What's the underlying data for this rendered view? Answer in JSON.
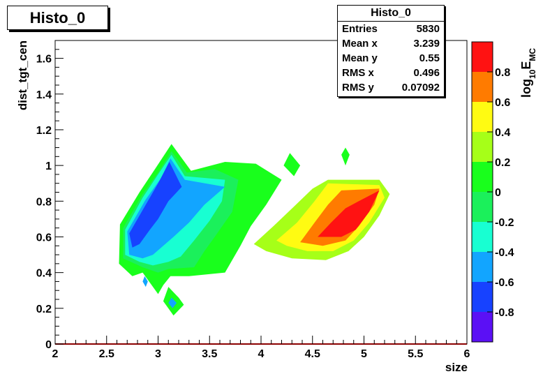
{
  "title": "Histo_0",
  "stats": {
    "title": "Histo_0",
    "rows": [
      {
        "label": "Entries",
        "value": "5830"
      },
      {
        "label": "Mean x",
        "value": "3.239"
      },
      {
        "label": "Mean y",
        "value": "0.55"
      },
      {
        "label": "RMS x",
        "value": "0.496"
      },
      {
        "label": "RMS y",
        "value": "0.07092"
      }
    ]
  },
  "chart_data": {
    "type": "heatmap",
    "style": "filled-contour",
    "xlabel": "size",
    "ylabel": "dist_tgt_cen",
    "zlabel_main": "log",
    "zlabel_sub1": "10",
    "zlabel_mid": "E",
    "zlabel_sub2": "MC",
    "xlim": [
      2,
      6
    ],
    "ylim": [
      0,
      1.7
    ],
    "x_ticks": [
      {
        "v": 2,
        "label": "2"
      },
      {
        "v": 2.5,
        "label": "2.5"
      },
      {
        "v": 3,
        "label": "3"
      },
      {
        "v": 3.5,
        "label": "3.5"
      },
      {
        "v": 4,
        "label": "4"
      },
      {
        "v": 4.5,
        "label": "4.5"
      },
      {
        "v": 5,
        "label": "5"
      },
      {
        "v": 5.5,
        "label": "5.5"
      },
      {
        "v": 6,
        "label": "6"
      }
    ],
    "y_ticks": [
      {
        "v": 0,
        "label": "0"
      },
      {
        "v": 0.2,
        "label": "0.2"
      },
      {
        "v": 0.4,
        "label": "0.4"
      },
      {
        "v": 0.6,
        "label": "0.6"
      },
      {
        "v": 0.8,
        "label": "0.8"
      },
      {
        "v": 1,
        "label": "1"
      },
      {
        "v": 1.2,
        "label": "1.2"
      },
      {
        "v": 1.4,
        "label": "1.4"
      },
      {
        "v": 1.6,
        "label": "1.6"
      }
    ],
    "zlim": [
      -1,
      1
    ],
    "z_levels": [
      {
        "lo": -1.0,
        "hi": -0.8,
        "color": "#5b10f5"
      },
      {
        "lo": -0.8,
        "hi": -0.6,
        "color": "#1742ff"
      },
      {
        "lo": -0.6,
        "hi": -0.4,
        "color": "#12a5ff"
      },
      {
        "lo": -0.4,
        "hi": -0.2,
        "color": "#18ffd2"
      },
      {
        "lo": -0.2,
        "hi": 0.0,
        "color": "#1bf05b"
      },
      {
        "lo": 0.0,
        "hi": 0.2,
        "color": "#19ff1c"
      },
      {
        "lo": 0.2,
        "hi": 0.4,
        "color": "#a6ff18"
      },
      {
        "lo": 0.4,
        "hi": 0.6,
        "color": "#fffb12"
      },
      {
        "lo": 0.6,
        "hi": 0.8,
        "color": "#ff7b00"
      },
      {
        "lo": 0.8,
        "hi": 1.0,
        "color": "#ff1212"
      }
    ],
    "z_ticks": [
      {
        "v": 0.8,
        "label": "0.8"
      },
      {
        "v": 0.6,
        "label": "0.6"
      },
      {
        "v": 0.4,
        "label": "0.4"
      },
      {
        "v": 0.2,
        "label": "0.2"
      },
      {
        "v": 0,
        "label": "0"
      },
      {
        "v": -0.2,
        "label": "-0.2"
      },
      {
        "v": -0.4,
        "label": "-0.4"
      },
      {
        "v": -0.6,
        "label": "-0.6"
      },
      {
        "v": -0.8,
        "label": "-0.8"
      }
    ],
    "regions": [
      {
        "level": 0.1,
        "color": "#19ff1c",
        "points": [
          [
            2.63,
            0.67
          ],
          [
            2.82,
            0.85
          ],
          [
            2.97,
            0.98
          ],
          [
            3.13,
            1.12
          ],
          [
            3.32,
            0.97
          ],
          [
            3.65,
            1.02
          ],
          [
            3.95,
            1.01
          ],
          [
            4.2,
            0.92
          ],
          [
            4.05,
            0.78
          ],
          [
            3.9,
            0.66
          ],
          [
            3.8,
            0.55
          ],
          [
            3.65,
            0.4
          ],
          [
            3.3,
            0.38
          ],
          [
            3.12,
            0.38
          ],
          [
            3.05,
            0.33
          ],
          [
            3.0,
            0.28
          ],
          [
            2.85,
            0.4
          ],
          [
            2.75,
            0.38
          ],
          [
            2.62,
            0.45
          ]
        ]
      },
      {
        "level": 0.1,
        "color": "#19ff1c",
        "points": [
          [
            3.1,
            0.32
          ],
          [
            3.2,
            0.26
          ],
          [
            3.25,
            0.22
          ],
          [
            3.15,
            0.16
          ],
          [
            3.05,
            0.24
          ]
        ]
      },
      {
        "level": 0.1,
        "color": "#19ff1c",
        "points": [
          [
            4.28,
            1.07
          ],
          [
            4.38,
            1.0
          ],
          [
            4.32,
            0.94
          ],
          [
            4.22,
            1.0
          ]
        ]
      },
      {
        "level": 0.1,
        "color": "#19ff1c",
        "points": [
          [
            4.82,
            1.1
          ],
          [
            4.86,
            1.06
          ],
          [
            4.82,
            1.0
          ],
          [
            4.78,
            1.06
          ]
        ]
      },
      {
        "level": -0.1,
        "color": "#1bf05b",
        "points": [
          [
            2.66,
            0.65
          ],
          [
            2.85,
            0.84
          ],
          [
            3.0,
            0.96
          ],
          [
            3.13,
            1.08
          ],
          [
            3.28,
            0.96
          ],
          [
            3.55,
            0.98
          ],
          [
            3.78,
            0.92
          ],
          [
            3.72,
            0.74
          ],
          [
            3.55,
            0.6
          ],
          [
            3.45,
            0.52
          ],
          [
            3.35,
            0.43
          ],
          [
            3.1,
            0.42
          ],
          [
            3.0,
            0.4
          ],
          [
            2.85,
            0.43
          ],
          [
            2.66,
            0.48
          ]
        ]
      },
      {
        "level": -0.3,
        "color": "#18ffd2",
        "points": [
          [
            2.68,
            0.64
          ],
          [
            2.85,
            0.82
          ],
          [
            3.0,
            0.95
          ],
          [
            3.13,
            1.06
          ],
          [
            3.26,
            0.94
          ],
          [
            3.65,
            0.92
          ],
          [
            3.62,
            0.8
          ],
          [
            3.5,
            0.69
          ],
          [
            3.35,
            0.58
          ],
          [
            3.22,
            0.49
          ],
          [
            3.1,
            0.46
          ],
          [
            2.95,
            0.44
          ],
          [
            2.82,
            0.46
          ],
          [
            2.68,
            0.5
          ]
        ]
      },
      {
        "level": -0.5,
        "color": "#12a5ff",
        "points": [
          [
            2.7,
            0.63
          ],
          [
            2.88,
            0.81
          ],
          [
            3.03,
            0.93
          ],
          [
            3.12,
            1.04
          ],
          [
            3.26,
            0.92
          ],
          [
            3.65,
            0.88
          ],
          [
            3.45,
            0.78
          ],
          [
            3.3,
            0.68
          ],
          [
            3.15,
            0.6
          ],
          [
            3.05,
            0.55
          ],
          [
            2.95,
            0.5
          ],
          [
            2.85,
            0.48
          ],
          [
            2.72,
            0.5
          ]
        ]
      },
      {
        "level": -0.5,
        "color": "#12a5ff",
        "points": [
          [
            2.87,
            0.38
          ],
          [
            2.9,
            0.35
          ],
          [
            2.88,
            0.32
          ],
          [
            2.85,
            0.35
          ]
        ]
      },
      {
        "level": -0.5,
        "color": "#12a5ff",
        "points": [
          [
            3.13,
            0.26
          ],
          [
            3.18,
            0.23
          ],
          [
            3.14,
            0.2
          ],
          [
            3.1,
            0.23
          ]
        ]
      },
      {
        "level": -0.7,
        "color": "#1742ff",
        "points": [
          [
            2.72,
            0.62
          ],
          [
            2.88,
            0.78
          ],
          [
            3.0,
            0.9
          ],
          [
            3.11,
            1.02
          ],
          [
            3.23,
            0.88
          ],
          [
            3.1,
            0.8
          ],
          [
            3.0,
            0.7
          ],
          [
            2.92,
            0.64
          ],
          [
            2.82,
            0.56
          ],
          [
            2.75,
            0.54
          ]
        ]
      },
      {
        "level": 0.3,
        "color": "#a6ff18",
        "points": [
          [
            3.93,
            0.56
          ],
          [
            4.12,
            0.66
          ],
          [
            4.32,
            0.77
          ],
          [
            4.5,
            0.87
          ],
          [
            4.65,
            0.92
          ],
          [
            5.15,
            0.92
          ],
          [
            5.25,
            0.84
          ],
          [
            5.15,
            0.72
          ],
          [
            5.0,
            0.6
          ],
          [
            4.85,
            0.52
          ],
          [
            4.63,
            0.47
          ],
          [
            4.3,
            0.48
          ],
          [
            4.05,
            0.52
          ]
        ]
      },
      {
        "level": 0.5,
        "color": "#fffb12",
        "points": [
          [
            4.15,
            0.58
          ],
          [
            4.35,
            0.68
          ],
          [
            4.52,
            0.8
          ],
          [
            4.65,
            0.9
          ],
          [
            5.15,
            0.89
          ],
          [
            5.2,
            0.82
          ],
          [
            5.05,
            0.68
          ],
          [
            4.9,
            0.58
          ],
          [
            4.7,
            0.52
          ],
          [
            4.45,
            0.52
          ],
          [
            4.25,
            0.55
          ]
        ]
      },
      {
        "level": 0.7,
        "color": "#ff7b00",
        "points": [
          [
            4.38,
            0.57
          ],
          [
            4.52,
            0.68
          ],
          [
            4.65,
            0.78
          ],
          [
            4.78,
            0.86
          ],
          [
            5.15,
            0.87
          ],
          [
            5.1,
            0.78
          ],
          [
            4.95,
            0.66
          ],
          [
            4.82,
            0.58
          ],
          [
            4.6,
            0.55
          ]
        ]
      },
      {
        "level": 0.9,
        "color": "#ff1212",
        "points": [
          [
            4.55,
            0.6
          ],
          [
            4.68,
            0.68
          ],
          [
            4.82,
            0.76
          ],
          [
            4.95,
            0.8
          ],
          [
            5.15,
            0.86
          ],
          [
            5.05,
            0.74
          ],
          [
            4.92,
            0.64
          ],
          [
            4.78,
            0.6
          ]
        ]
      }
    ]
  }
}
